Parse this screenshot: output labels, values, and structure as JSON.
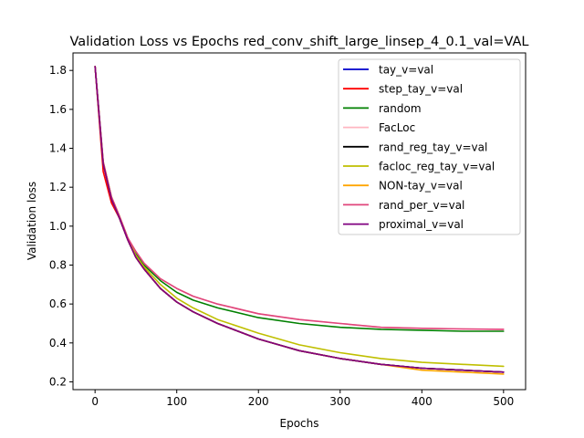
{
  "chart_data": {
    "type": "line",
    "title": "Validation Loss vs Epochs red_conv_shift_large_linsep_4_0.1_val=VAL",
    "xlabel": "Epochs",
    "ylabel": "Validation loss",
    "xlim": [
      -27,
      527
    ],
    "ylim": [
      0.16,
      1.89
    ],
    "xticks": [
      0,
      100,
      200,
      300,
      400,
      500
    ],
    "yticks": [
      0.2,
      0.4,
      0.6,
      0.8,
      1.0,
      1.2,
      1.4,
      1.6,
      1.8
    ],
    "ytick_labels": [
      "0.2",
      "0.4",
      "0.6",
      "0.8",
      "1.0",
      "1.2",
      "1.4",
      "1.6",
      "1.8"
    ],
    "grid": false,
    "legend_position": "top-right",
    "x": [
      0,
      10,
      20,
      30,
      40,
      50,
      60,
      80,
      100,
      120,
      150,
      200,
      250,
      300,
      350,
      400,
      450,
      500
    ],
    "series": [
      {
        "name": "tay_v=val",
        "color": "#0000cc",
        "values": [
          1.82,
          1.32,
          1.14,
          1.04,
          0.93,
          0.84,
          0.78,
          0.68,
          0.61,
          0.56,
          0.5,
          0.42,
          0.36,
          0.32,
          0.29,
          0.27,
          0.26,
          0.25
        ]
      },
      {
        "name": "step_tay_v=val",
        "color": "#ff0000",
        "values": [
          1.82,
          1.28,
          1.12,
          1.04,
          0.93,
          0.84,
          0.78,
          0.68,
          0.61,
          0.56,
          0.5,
          0.42,
          0.36,
          0.32,
          0.29,
          0.27,
          0.26,
          0.25
        ]
      },
      {
        "name": "random",
        "color": "#008000",
        "values": [
          1.82,
          1.33,
          1.15,
          1.05,
          0.94,
          0.86,
          0.8,
          0.72,
          0.66,
          0.62,
          0.58,
          0.53,
          0.5,
          0.48,
          0.47,
          0.465,
          0.46,
          0.46
        ]
      },
      {
        "name": "FacLoc",
        "color": "#ffb6c1",
        "values": [
          1.82,
          1.33,
          1.15,
          1.05,
          0.94,
          0.87,
          0.81,
          0.73,
          0.68,
          0.64,
          0.6,
          0.55,
          0.52,
          0.5,
          0.48,
          0.475,
          0.472,
          0.47
        ]
      },
      {
        "name": "rand_reg_tay_v=val",
        "color": "#000000",
        "values": [
          1.82,
          1.32,
          1.14,
          1.04,
          0.93,
          0.84,
          0.78,
          0.68,
          0.61,
          0.56,
          0.5,
          0.42,
          0.36,
          0.32,
          0.29,
          0.27,
          0.26,
          0.25
        ]
      },
      {
        "name": "facloc_reg_tay_v=val",
        "color": "#bfbf00",
        "values": [
          1.82,
          1.33,
          1.15,
          1.05,
          0.94,
          0.85,
          0.79,
          0.7,
          0.63,
          0.58,
          0.52,
          0.45,
          0.39,
          0.35,
          0.32,
          0.3,
          0.29,
          0.28
        ]
      },
      {
        "name": "NON-tay_v=val",
        "color": "#ffa500",
        "values": [
          1.82,
          1.32,
          1.14,
          1.04,
          0.93,
          0.84,
          0.78,
          0.68,
          0.61,
          0.56,
          0.5,
          0.42,
          0.36,
          0.32,
          0.29,
          0.26,
          0.25,
          0.24
        ]
      },
      {
        "name": "rand_per_v=val",
        "color": "#e0457b",
        "values": [
          1.82,
          1.33,
          1.15,
          1.05,
          0.94,
          0.87,
          0.81,
          0.73,
          0.68,
          0.64,
          0.6,
          0.55,
          0.52,
          0.5,
          0.48,
          0.475,
          0.472,
          0.47
        ]
      },
      {
        "name": "proximal_v=val",
        "color": "#800080",
        "values": [
          1.82,
          1.32,
          1.14,
          1.04,
          0.93,
          0.84,
          0.78,
          0.68,
          0.61,
          0.56,
          0.5,
          0.42,
          0.36,
          0.32,
          0.29,
          0.27,
          0.26,
          0.25
        ]
      }
    ]
  }
}
